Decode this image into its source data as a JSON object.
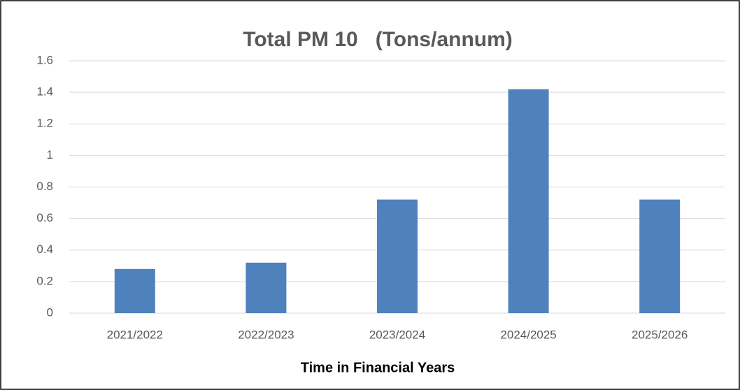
{
  "chart_data": {
    "type": "bar",
    "title": "Total PM 10   (Tons/annum)",
    "x_label": "Time in Financial Years",
    "categories": [
      "2021/2022",
      "2022/2023",
      "2023/2024",
      "2024/2025",
      "2025/2026"
    ],
    "values": [
      0.28,
      0.32,
      0.72,
      1.42,
      0.72
    ],
    "color": "#4f81bd",
    "ylim": [
      0,
      1.6
    ],
    "yticks": [
      0,
      0.2,
      0.4,
      0.6,
      0.8,
      1,
      1.2,
      1.4,
      1.6
    ],
    "grid": true
  }
}
